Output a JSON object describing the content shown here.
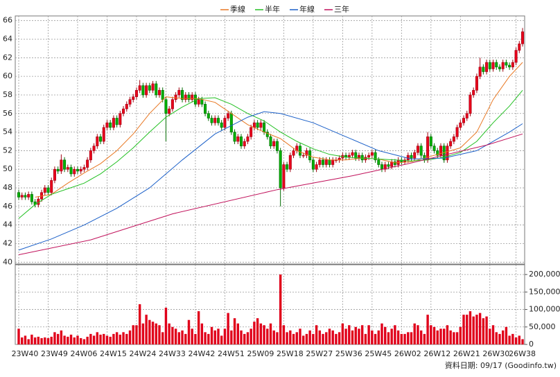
{
  "chart_data": {
    "type": "candlestick",
    "grid": true,
    "legend_position": "top",
    "footnote": "資料日期: 09/17 (Goodinfo.tw)",
    "categories": [
      "23W40",
      null,
      null,
      null,
      null,
      null,
      null,
      null,
      null,
      "23W49",
      null,
      null,
      null,
      null,
      null,
      null,
      null,
      null,
      "24W06",
      null,
      null,
      null,
      null,
      null,
      null,
      null,
      null,
      "24W15",
      null,
      null,
      null,
      null,
      null,
      null,
      null,
      null,
      "24W24",
      null,
      null,
      null,
      null,
      null,
      null,
      null,
      null,
      "24W33",
      null,
      null,
      null,
      null,
      null,
      null,
      null,
      null,
      "24W42",
      null,
      null,
      null,
      null,
      null,
      null,
      null,
      null,
      "24W51",
      null,
      null,
      null,
      null,
      null,
      null,
      null,
      null,
      "25W09",
      null,
      null,
      null,
      null,
      null,
      null,
      null,
      null,
      "25W18",
      null,
      null,
      null,
      null,
      null,
      null,
      null,
      null,
      "25W27",
      null,
      null,
      null,
      null,
      null,
      null,
      null,
      null,
      "25W36",
      null,
      null,
      null,
      null,
      null,
      null,
      null,
      null,
      "25W45",
      null,
      null,
      null,
      null,
      null,
      null,
      null,
      null,
      "26W02",
      null,
      null,
      null,
      null,
      null,
      null,
      null,
      null,
      "26W12",
      null,
      null,
      null,
      null,
      null,
      null,
      null,
      null,
      "26W21",
      null,
      null,
      null,
      null,
      null,
      null,
      null,
      null,
      "26W30",
      null,
      null,
      null,
      null,
      null,
      null,
      null,
      "26W38",
      null,
      null
    ],
    "ylim": [
      39.8,
      66.5
    ],
    "yticks": [
      40,
      42,
      44,
      46,
      48,
      50,
      52,
      54,
      56,
      58,
      60,
      62,
      64,
      66
    ],
    "y2lim": [
      0,
      228000
    ],
    "y2ticks": [
      0,
      {
        "value": 50000,
        "label": "50,000"
      },
      {
        "value": 100000,
        "label": "100,000"
      },
      {
        "value": 150000,
        "label": "150,000"
      },
      {
        "value": 200000,
        "label": "200,000"
      }
    ],
    "candles": {
      "up_color": "#e8001c",
      "down_color": "#00b000",
      "open": [
        47.5,
        47.0,
        47.2,
        47.0,
        47.3,
        46.5,
        46.2,
        46.8,
        47.5,
        48.0,
        47.5,
        48.8,
        50.0,
        49.8,
        51.0,
        50.0,
        50.2,
        49.5,
        50.0,
        49.8,
        50.0,
        50.2,
        51.0,
        52.0,
        52.5,
        53.5,
        53.0,
        54.5,
        55.0,
        54.5,
        55.5,
        54.8,
        56.0,
        56.5,
        57.0,
        57.5,
        57.8,
        58.5,
        59.0,
        58.0,
        59.0,
        58.5,
        59.2,
        58.0,
        58.5,
        57.5,
        56.0,
        56.5,
        57.5,
        58.0,
        58.5,
        57.5,
        58.0,
        57.5,
        58.0,
        57.0,
        57.5,
        57.0,
        56.0,
        55.5,
        55.0,
        55.5,
        55.0,
        54.5,
        55.5,
        56.0,
        54.0,
        53.0,
        53.5,
        52.5,
        53.0,
        53.5,
        54.5,
        55.0,
        54.5,
        55.0,
        54.0,
        53.5,
        52.5,
        53.0,
        52.0,
        48.0,
        50.5,
        50.0,
        51.5,
        52.0,
        52.5,
        51.5,
        51.5,
        52.0,
        51.0,
        50.0,
        50.5,
        51.0,
        50.5,
        51.0,
        50.5,
        51.0,
        51.0,
        51.2,
        51.5,
        51.3,
        51.5,
        51.8,
        51.2,
        51.5,
        51.0,
        51.3,
        51.5,
        51.8,
        51.0,
        50.5,
        50.0,
        50.5,
        50.3,
        50.8,
        50.5,
        51.0,
        50.8,
        51.0,
        51.5,
        51.2,
        51.8,
        52.5,
        51.5,
        51.0,
        53.5,
        52.5,
        52.0,
        51.5,
        52.5,
        51.0,
        52.5,
        53.0,
        53.5,
        54.5,
        55.0,
        55.5,
        56.0,
        58.0,
        58.5,
        60.0,
        61.0,
        60.5,
        61.5,
        60.8,
        61.5,
        61.0,
        60.8,
        61.5,
        61.2,
        61.0,
        61.5,
        62.8,
        63.5
      ],
      "high": [
        47.8,
        47.5,
        47.5,
        47.6,
        47.6,
        46.8,
        47.1,
        47.8,
        48.3,
        48.3,
        49.1,
        50.3,
        50.3,
        51.6,
        51.3,
        50.5,
        50.5,
        50.3,
        50.3,
        50.3,
        50.5,
        51.3,
        52.3,
        52.8,
        53.8,
        53.8,
        54.8,
        55.3,
        55.3,
        55.8,
        55.8,
        56.3,
        56.8,
        57.3,
        57.8,
        58.1,
        58.8,
        59.6,
        59.3,
        59.3,
        59.3,
        59.5,
        59.5,
        58.8,
        58.8,
        57.8,
        56.8,
        57.8,
        58.3,
        58.8,
        58.8,
        58.3,
        58.3,
        58.3,
        58.3,
        57.8,
        57.8,
        57.3,
        56.3,
        55.8,
        55.8,
        55.8,
        55.3,
        55.8,
        56.3,
        56.3,
        54.3,
        53.8,
        53.8,
        53.3,
        53.8,
        54.8,
        55.3,
        55.3,
        55.3,
        55.3,
        54.3,
        53.8,
        53.3,
        53.3,
        52.3,
        50.8,
        50.8,
        51.8,
        52.3,
        52.8,
        52.8,
        51.8,
        52.3,
        52.3,
        51.3,
        50.8,
        51.3,
        51.3,
        51.3,
        51.3,
        51.3,
        51.3,
        51.5,
        51.8,
        51.8,
        51.8,
        52.1,
        52.1,
        51.8,
        51.8,
        51.6,
        51.8,
        52.1,
        52.1,
        51.3,
        50.8,
        50.8,
        50.8,
        51.1,
        51.1,
        51.3,
        51.3,
        51.3,
        51.8,
        51.8,
        52.1,
        52.8,
        52.8,
        51.8,
        54.0,
        53.8,
        52.8,
        52.3,
        52.8,
        52.8,
        52.8,
        53.3,
        53.8,
        54.8,
        55.3,
        55.8,
        56.3,
        58.3,
        58.8,
        60.3,
        62.0,
        61.3,
        61.8,
        61.8,
        61.8,
        61.8,
        61.3,
        61.8,
        61.8,
        61.5,
        61.8,
        63.1,
        63.8,
        65.2
      ],
      "low": [
        46.7,
        46.7,
        46.7,
        46.7,
        46.2,
        45.9,
        45.9,
        46.5,
        47.2,
        47.2,
        47.2,
        48.5,
        49.5,
        49.5,
        49.7,
        49.7,
        49.2,
        49.2,
        49.5,
        49.5,
        49.7,
        49.9,
        50.7,
        51.7,
        52.2,
        52.7,
        52.7,
        54.2,
        54.2,
        54.2,
        54.5,
        54.5,
        55.7,
        56.2,
        56.7,
        57.2,
        57.5,
        58.2,
        57.7,
        57.7,
        58.2,
        58.2,
        57.7,
        57.7,
        57.2,
        53.0,
        55.7,
        56.2,
        57.2,
        57.7,
        57.2,
        57.2,
        57.2,
        57.2,
        56.7,
        56.7,
        56.7,
        55.7,
        55.2,
        54.7,
        54.7,
        54.7,
        54.2,
        54.2,
        55.2,
        53.7,
        52.7,
        52.7,
        52.2,
        52.2,
        52.7,
        53.2,
        54.2,
        54.2,
        54.2,
        53.7,
        53.2,
        52.2,
        52.2,
        51.7,
        46.0,
        47.7,
        49.7,
        49.7,
        51.2,
        51.7,
        51.2,
        51.2,
        51.2,
        50.7,
        49.7,
        49.7,
        50.2,
        50.2,
        50.2,
        50.2,
        50.2,
        50.7,
        50.7,
        50.9,
        51.0,
        51.0,
        51.2,
        50.9,
        50.9,
        50.7,
        50.7,
        51.0,
        51.2,
        50.7,
        50.2,
        49.7,
        49.7,
        50.0,
        50.0,
        50.2,
        50.2,
        50.5,
        50.5,
        50.7,
        50.9,
        50.9,
        51.5,
        51.2,
        50.7,
        50.7,
        52.2,
        51.7,
        51.2,
        51.2,
        50.7,
        50.7,
        52.2,
        52.7,
        53.2,
        54.2,
        54.7,
        55.2,
        55.7,
        57.7,
        58.2,
        59.7,
        60.2,
        60.2,
        60.5,
        60.5,
        60.7,
        60.5,
        60.5,
        60.9,
        60.7,
        60.7,
        61.2,
        62.5,
        63.2
      ],
      "close": [
        47.0,
        47.2,
        47.0,
        47.3,
        46.5,
        46.2,
        46.8,
        47.5,
        48.0,
        47.5,
        48.8,
        50.0,
        49.8,
        51.0,
        50.0,
        50.2,
        49.5,
        50.0,
        49.8,
        50.0,
        50.2,
        51.0,
        52.0,
        52.5,
        53.5,
        53.0,
        54.5,
        55.0,
        54.5,
        55.5,
        54.8,
        56.0,
        56.5,
        57.0,
        57.5,
        57.8,
        58.5,
        59.0,
        58.0,
        59.0,
        58.5,
        59.2,
        58.0,
        58.5,
        57.5,
        56.0,
        56.5,
        57.5,
        58.0,
        58.5,
        57.5,
        58.0,
        57.5,
        58.0,
        57.0,
        57.5,
        57.0,
        56.0,
        55.5,
        55.0,
        55.5,
        55.0,
        54.5,
        55.5,
        56.0,
        54.0,
        53.0,
        53.5,
        52.5,
        53.0,
        53.5,
        54.5,
        55.0,
        54.5,
        55.0,
        54.0,
        53.5,
        52.5,
        53.0,
        52.0,
        48.0,
        50.5,
        50.0,
        51.5,
        52.0,
        52.5,
        51.5,
        51.5,
        52.0,
        51.0,
        50.0,
        50.5,
        51.0,
        50.5,
        51.0,
        50.5,
        51.0,
        51.0,
        51.2,
        51.5,
        51.3,
        51.5,
        51.8,
        51.2,
        51.5,
        51.0,
        51.3,
        51.5,
        51.8,
        51.0,
        50.5,
        50.0,
        50.5,
        50.3,
        50.8,
        50.5,
        51.0,
        50.8,
        51.0,
        51.5,
        51.2,
        51.8,
        52.5,
        51.5,
        51.0,
        53.5,
        52.5,
        52.0,
        51.5,
        52.5,
        51.0,
        52.5,
        53.0,
        53.5,
        54.5,
        55.0,
        55.5,
        56.0,
        58.0,
        58.5,
        60.0,
        61.0,
        60.5,
        61.5,
        60.8,
        61.5,
        61.0,
        60.8,
        61.5,
        61.2,
        61.0,
        61.5,
        62.8,
        63.5,
        64.8
      ]
    },
    "lines": [
      {
        "name": "季線",
        "color": "#e87722",
        "x": [
          5,
          10,
          15,
          20,
          25,
          30,
          35,
          40,
          45,
          50,
          55,
          60,
          65,
          70,
          75,
          80,
          85,
          90,
          95,
          100,
          105,
          110,
          115,
          120,
          125,
          130,
          135,
          140,
          145,
          150,
          154
        ],
        "values": [
          47.0,
          47.3,
          48.5,
          49.6,
          50.6,
          52.0,
          53.8,
          56.0,
          57.8,
          57.6,
          57.6,
          57.2,
          56.0,
          54.8,
          54.0,
          53.3,
          52.0,
          51.3,
          51.0,
          51.0,
          51.2,
          51.1,
          50.7,
          50.8,
          51.3,
          51.8,
          52.3,
          54.0,
          57.5,
          60.0,
          61.5
        ]
      },
      {
        "name": "半年",
        "color": "#22c022",
        "x": [
          0,
          5,
          10,
          15,
          20,
          25,
          30,
          35,
          40,
          45,
          50,
          55,
          60,
          65,
          70,
          75,
          80,
          85,
          90,
          95,
          100,
          105,
          110,
          115,
          120,
          125,
          130,
          135,
          140,
          145,
          150,
          154
        ],
        "values": [
          44.7,
          46.2,
          47.3,
          47.9,
          48.5,
          49.5,
          50.8,
          52.3,
          54.0,
          55.6,
          56.7,
          57.6,
          57.7,
          57.0,
          56.0,
          55.2,
          54.0,
          53.0,
          52.2,
          51.6,
          51.3,
          51.2,
          51.1,
          51.0,
          50.9,
          51.0,
          51.3,
          51.8,
          53.0,
          55.0,
          56.8,
          58.5
        ]
      },
      {
        "name": "年線",
        "color": "#1a5fc8",
        "x": [
          0,
          10,
          20,
          30,
          40,
          50,
          60,
          70,
          75,
          80,
          90,
          100,
          110,
          120,
          130,
          140,
          150,
          154
        ],
        "values": [
          41.3,
          42.5,
          44.0,
          45.8,
          48.0,
          51.0,
          53.8,
          55.6,
          56.2,
          56.0,
          55.0,
          53.5,
          52.0,
          51.1,
          51.2,
          52.0,
          54.0,
          54.9
        ]
      },
      {
        "name": "三年",
        "color": "#c0105a",
        "x": [
          0,
          22,
          47,
          79,
          102,
          119,
          143,
          154
        ],
        "values": [
          40.8,
          42.4,
          45.2,
          47.8,
          49.3,
          50.6,
          52.6,
          53.8
        ]
      }
    ],
    "volume": {
      "axis": "y2",
      "color": "#e0001a",
      "values": [
        45000,
        20000,
        25000,
        15000,
        28000,
        20000,
        22000,
        18000,
        20000,
        18000,
        22000,
        35000,
        30000,
        40000,
        25000,
        22000,
        28000,
        20000,
        25000,
        18000,
        15000,
        22000,
        30000,
        25000,
        35000,
        28000,
        30000,
        25000,
        22000,
        30000,
        35000,
        28000,
        35000,
        30000,
        40000,
        55000,
        55000,
        115000,
        60000,
        85000,
        70000,
        65000,
        60000,
        55000,
        35000,
        105000,
        60000,
        50000,
        45000,
        35000,
        40000,
        30000,
        70000,
        45000,
        30000,
        95000,
        60000,
        35000,
        30000,
        50000,
        40000,
        45000,
        25000,
        45000,
        90000,
        40000,
        75000,
        60000,
        40000,
        30000,
        35000,
        45000,
        65000,
        75000,
        60000,
        55000,
        45000,
        60000,
        40000,
        35000,
        200000,
        55000,
        35000,
        40000,
        30000,
        35000,
        45000,
        25000,
        30000,
        40000,
        30000,
        55000,
        40000,
        30000,
        35000,
        45000,
        40000,
        30000,
        35000,
        60000,
        45000,
        55000,
        40000,
        50000,
        45000,
        55000,
        30000,
        55000,
        40000,
        30000,
        40000,
        60000,
        50000,
        35000,
        45000,
        55000,
        40000,
        30000,
        30000,
        35000,
        35000,
        60000,
        55000,
        40000,
        30000,
        85000,
        55000,
        50000,
        40000,
        45000,
        45000,
        55000,
        40000,
        35000,
        35000,
        50000,
        85000,
        85000,
        95000,
        80000,
        85000,
        90000,
        75000,
        80000,
        45000,
        55000,
        35000,
        30000,
        40000,
        50000,
        25000,
        30000,
        20000,
        25000,
        15000
      ]
    }
  }
}
